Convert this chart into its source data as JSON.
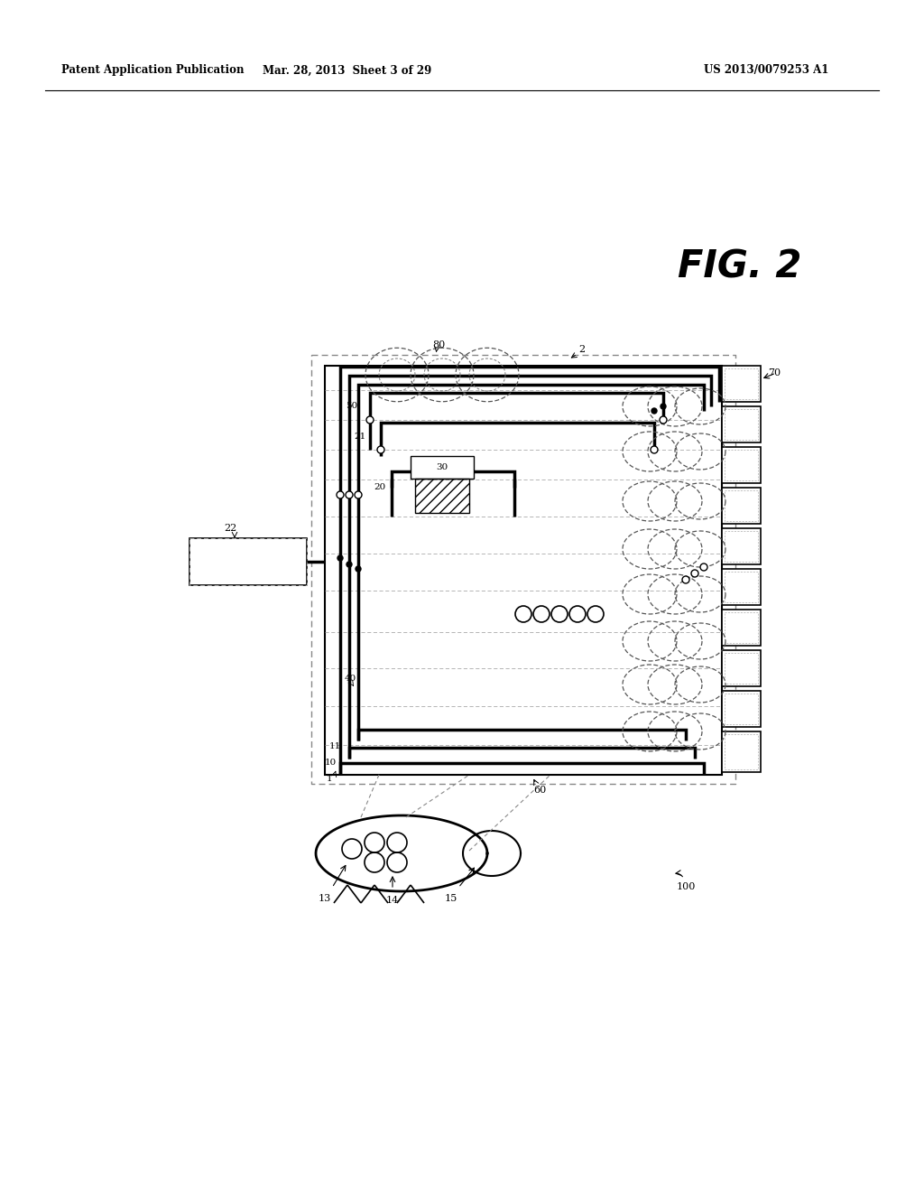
{
  "header_left": "Patent Application Publication",
  "header_center": "Mar. 28, 2013  Sheet 3 of 29",
  "header_right": "US 2013/0079253 A1",
  "fig_label": "FIG. 2",
  "bg_color": "#ffffff",
  "lc": "#000000",
  "dc": "#666666"
}
